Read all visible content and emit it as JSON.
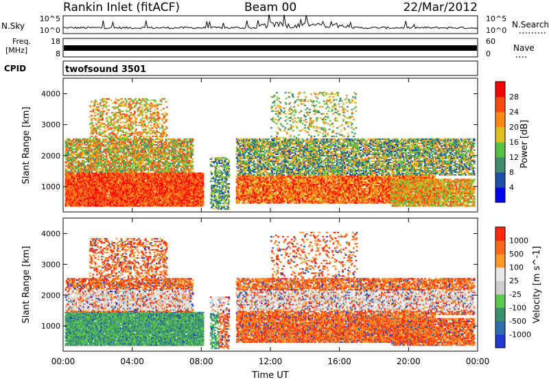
{
  "header": {
    "station": "Rankin Inlet (fitACF)",
    "beam": "Beam 00",
    "date": "22/Mar/2012"
  },
  "top_panels": {
    "nsky_label": "N.Sky",
    "nsky_ticks": [
      "10^5",
      "10^0"
    ],
    "nsearch_label": "N.Search",
    "nsearch_ticks": [
      "10^5",
      "10^0"
    ],
    "freq_label_1": "Freq.",
    "freq_label_2": "[MHz]",
    "freq_ticks": [
      "18",
      "8"
    ],
    "nave_label": "Nave",
    "nave_ticks": [
      "60",
      "0"
    ],
    "cpid_label": "CPID",
    "cpid_value": "twofsound 3501"
  },
  "colors": {
    "power_scale": [
      "#0000ff",
      "#1f4fa8",
      "#3d8c6e",
      "#59c046",
      "#e0c020",
      "#ff8a1a",
      "#ff4a10",
      "#ff0000"
    ],
    "velocity_scale": [
      "#1e3ad0",
      "#2f6fb0",
      "#3a8f6e",
      "#5cc850",
      "#cfcfcf",
      "#e8e8e8",
      "#ff9a2a",
      "#ff6a1a",
      "#ff2a10"
    ]
  },
  "chart_data": [
    {
      "type": "heatmap",
      "title": "Power",
      "ylabel": "Slant Range [km]",
      "y_ticks": [
        "4000",
        "3000",
        "2000",
        "1000"
      ],
      "ylim": [
        180,
        4500
      ],
      "colorbar_label": "Power [dB]",
      "colorbar_ticks": [
        "28",
        "24",
        "20",
        "16",
        "12",
        "8",
        "4"
      ],
      "clim": [
        0,
        32
      ],
      "x_ticks": [
        "00:00",
        "04:00",
        "08:00",
        "12:00",
        "16:00",
        "20:00",
        "00:00"
      ],
      "xlim_hours": [
        0,
        24
      ]
    },
    {
      "type": "heatmap",
      "title": "Velocity",
      "ylabel": "Slant Range [km]",
      "y_ticks": [
        "4000",
        "3000",
        "2000",
        "1000"
      ],
      "ylim": [
        180,
        4500
      ],
      "colorbar_label": "Velocity [m s^-1]",
      "colorbar_ticks": [
        "1000",
        "500",
        "100",
        "25",
        "-25",
        "-100",
        "-500",
        "-1000"
      ],
      "x_ticks": [
        "00:00",
        "04:00",
        "08:00",
        "12:00",
        "16:00",
        "20:00",
        "00:00"
      ],
      "xlabel": "Time UT",
      "xlim_hours": [
        0,
        24
      ]
    }
  ]
}
